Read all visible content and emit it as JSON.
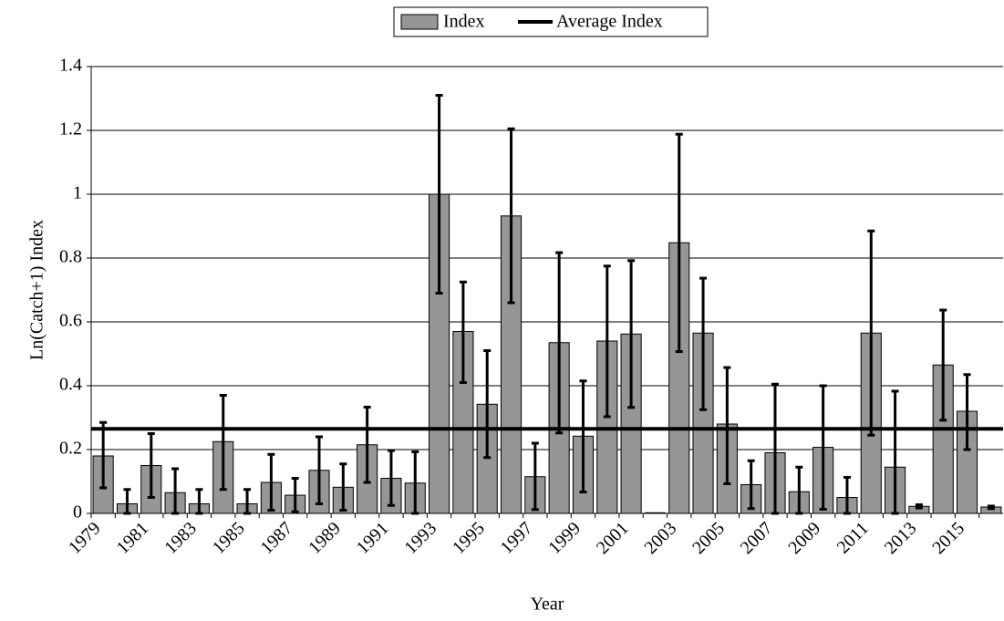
{
  "chart_data": {
    "type": "bar",
    "categories": [
      "1979",
      null,
      "1981",
      null,
      "1983",
      null,
      "1985",
      null,
      "1987",
      null,
      "1989",
      null,
      "1991",
      null,
      "1993",
      null,
      "1995",
      null,
      "1997",
      null,
      "1999",
      null,
      "2001",
      null,
      "2003",
      null,
      "2005",
      null,
      "2007",
      null,
      "2009",
      null,
      "2011",
      null,
      "2013",
      null,
      "2015",
      null
    ],
    "series": [
      {
        "name": "Index",
        "color": "#969696",
        "values": [
          0.18,
          0.03,
          0.15,
          0.065,
          0.03,
          0.225,
          0.03,
          0.097,
          0.057,
          0.135,
          0.082,
          0.215,
          0.11,
          0.095,
          1.0,
          0.57,
          0.342,
          0.932,
          0.115,
          0.535,
          0.242,
          0.54,
          0.562,
          0.002,
          0.848,
          0.565,
          0.28,
          0.09,
          0.19,
          0.068,
          0.207,
          0.05,
          0.565,
          0.145,
          0.022,
          0.465,
          0.32,
          0.02
        ],
        "lower": [
          0.08,
          0,
          0.05,
          0,
          0,
          0.075,
          0,
          0.01,
          0.005,
          0.03,
          0.01,
          0.097,
          0.025,
          0,
          0.69,
          0.41,
          0.175,
          0.66,
          0.012,
          0.252,
          0.067,
          0.303,
          0.332,
          null,
          0.507,
          0.325,
          0.093,
          0.015,
          0,
          0,
          0.013,
          0,
          0.245,
          0,
          0.017,
          0.292,
          0.2,
          0.015
        ],
        "upper": [
          0.285,
          0.075,
          0.25,
          0.14,
          0.075,
          0.37,
          0.075,
          0.185,
          0.11,
          0.24,
          0.155,
          0.333,
          0.197,
          0.193,
          1.31,
          0.725,
          0.51,
          1.205,
          0.22,
          0.817,
          0.415,
          0.775,
          0.792,
          null,
          1.188,
          0.737,
          0.457,
          0.165,
          0.405,
          0.145,
          0.4,
          0.113,
          0.885,
          0.383,
          0.027,
          0.637,
          0.435,
          0.023
        ]
      },
      {
        "name": "Average Index",
        "color": "#000000",
        "value": 0.265
      }
    ],
    "xlabel": "Year",
    "ylabel": "Ln(Catch+1) Index",
    "ylim": [
      0,
      1.4
    ],
    "yticks": [
      0,
      0.2,
      0.4,
      0.6,
      0.8,
      1,
      1.2,
      1.4
    ],
    "grid": true,
    "legend": "top"
  }
}
